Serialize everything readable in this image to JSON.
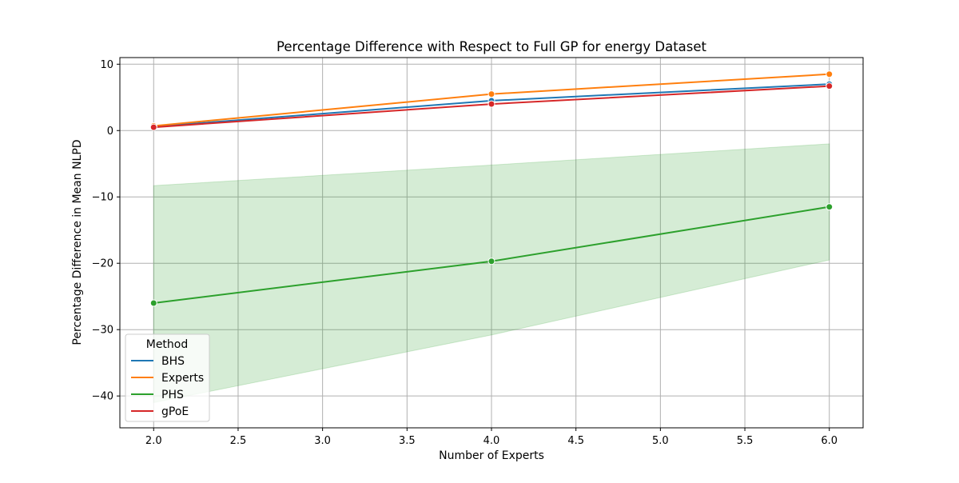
{
  "chart_data": {
    "type": "line",
    "title": "Percentage Difference with Respect to Full GP for energy Dataset",
    "xlabel": "Number of Experts",
    "ylabel": "Percentage Difference in Mean NLPD",
    "xlim": [
      1.8,
      6.2
    ],
    "ylim": [
      -44.8,
      11.0
    ],
    "xticks": [
      "2.0",
      "2.5",
      "3.0",
      "3.5",
      "4.0",
      "4.5",
      "5.0",
      "5.5",
      "6.0"
    ],
    "xtick_values": [
      2.0,
      2.5,
      3.0,
      3.5,
      4.0,
      4.5,
      5.0,
      5.5,
      6.0
    ],
    "yticks": [
      "10",
      "0",
      "−10",
      "−20",
      "−30",
      "−40"
    ],
    "ytick_values": [
      10,
      0,
      -10,
      -20,
      -30,
      -40
    ],
    "grid": true,
    "legend_title": "Method",
    "legend_position": "lower-left",
    "x": [
      2,
      4,
      6
    ],
    "series": [
      {
        "name": "BHS",
        "color": "#1f77b4",
        "values": [
          0.6,
          4.5,
          7.0
        ]
      },
      {
        "name": "Experts",
        "color": "#ff7f0e",
        "values": [
          0.7,
          5.5,
          8.5
        ]
      },
      {
        "name": "PHS",
        "color": "#2ca02c",
        "values": [
          -26.0,
          -19.7,
          -11.5
        ],
        "ci_lower": [
          -41.0,
          -30.8,
          -19.5
        ],
        "ci_upper": [
          -8.3,
          -5.2,
          -2.0
        ]
      },
      {
        "name": "gPoE",
        "color": "#d62728",
        "values": [
          0.5,
          4.0,
          6.7
        ]
      }
    ]
  }
}
